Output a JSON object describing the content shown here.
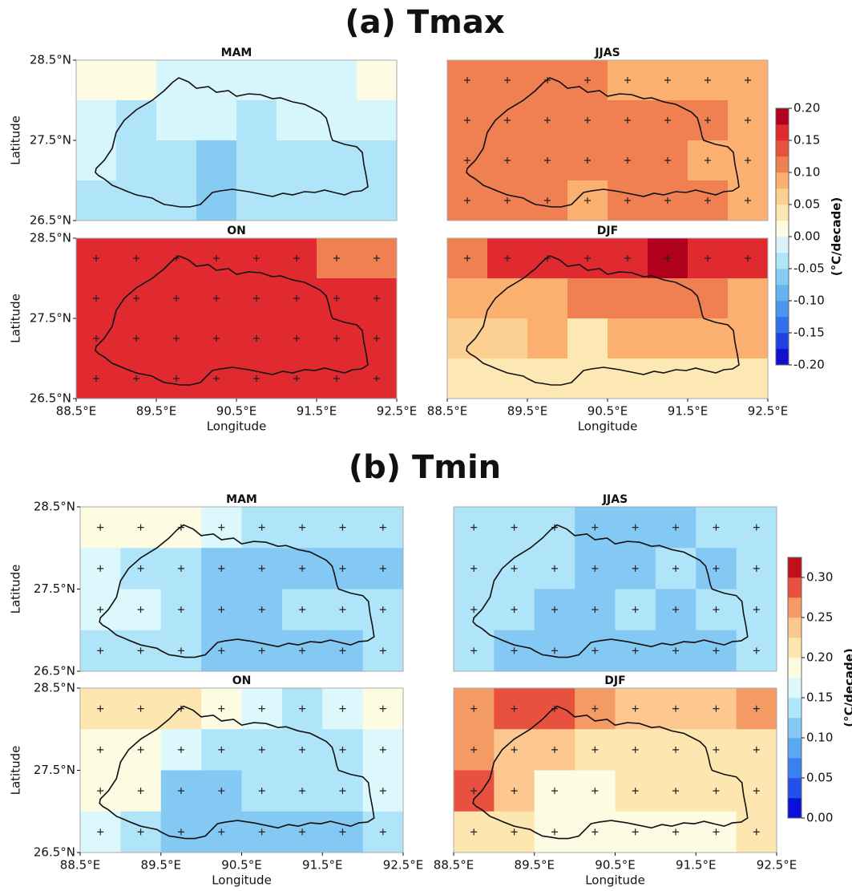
{
  "chart_data": [
    {
      "type": "heatmap",
      "title": "(a) Tmax",
      "xlabel": "Longitude",
      "ylabel": "Latitude",
      "xlim": [
        88.5,
        92.5
      ],
      "ylim": [
        26.5,
        28.5
      ],
      "xticks": [
        {
          "value": 88.5,
          "label": "88.5°E"
        },
        {
          "value": 89.5,
          "label": "89.5°E"
        },
        {
          "value": 90.5,
          "label": "90.5°E"
        },
        {
          "value": 91.5,
          "label": "91.5°E"
        },
        {
          "value": 92.5,
          "label": "92.5°E"
        }
      ],
      "yticks": [
        {
          "value": 28.5,
          "label": "28.5°N"
        },
        {
          "value": 27.5,
          "label": "27.5°N"
        },
        {
          "value": 26.5,
          "label": "26.5°N"
        }
      ],
      "colorbar": {
        "label": "(°C/decade)",
        "lim": [
          -0.2,
          0.2
        ],
        "ticks": [
          {
            "value": 0.2,
            "label": "0.20"
          },
          0.15,
          {
            "value": 0.1,
            "label": "0.10"
          },
          0.05,
          {
            "value": 0,
            "label": "0.00"
          },
          -0.05,
          {
            "value": -0.1,
            "label": "-0.10"
          },
          -0.15,
          {
            "value": -0.2,
            "label": "-0.20"
          }
        ],
        "colors": [
          "#1010d0",
          "#2040e0",
          "#3070f0",
          "#4a94f2",
          "#64b4f2",
          "#86ccf2",
          "#b0e4f8",
          "#d6f6fc",
          "#fdfbe2",
          "#fde8b4",
          "#fcd092",
          "#fbb070",
          "#f08052",
          "#ea5240",
          "#e02a30",
          "#b0001c"
        ]
      },
      "panels": [
        {
          "title": "MAM",
          "stipple_rows": [],
          "values": [
            [
              0.01,
              0.01,
              -0.01,
              -0.01,
              -0.01,
              -0.01,
              -0.01,
              0.01
            ],
            [
              -0.01,
              -0.035,
              -0.005,
              -0.005,
              -0.035,
              -0.005,
              -0.005,
              -0.01
            ],
            [
              -0.01,
              -0.035,
              -0.035,
              -0.06,
              -0.035,
              -0.035,
              -0.035,
              -0.035
            ],
            [
              -0.035,
              -0.035,
              -0.035,
              -0.06,
              -0.035,
              -0.035,
              -0.035,
              -0.035
            ]
          ]
        },
        {
          "title": "JJAS",
          "stipple_rows": [
            0,
            1,
            2,
            3
          ],
          "values": [
            [
              0.11,
              0.11,
              0.11,
              0.11,
              0.09,
              0.09,
              0.09,
              0.09
            ],
            [
              0.11,
              0.11,
              0.11,
              0.11,
              0.11,
              0.11,
              0.11,
              0.09
            ],
            [
              0.11,
              0.11,
              0.11,
              0.11,
              0.11,
              0.11,
              0.09,
              0.09
            ],
            [
              0.11,
              0.11,
              0.11,
              0.09,
              0.11,
              0.11,
              0.11,
              0.09
            ]
          ]
        },
        {
          "title": "ON",
          "stipple_rows": [
            0,
            1,
            2,
            3
          ],
          "values": [
            [
              0.16,
              0.16,
              0.16,
              0.16,
              0.16,
              0.16,
              0.12,
              0.12
            ],
            [
              0.16,
              0.16,
              0.16,
              0.16,
              0.16,
              0.16,
              0.16,
              0.16
            ],
            [
              0.16,
              0.16,
              0.16,
              0.16,
              0.17,
              0.16,
              0.17,
              0.16
            ],
            [
              0.16,
              0.16,
              0.16,
              0.16,
              0.16,
              0.16,
              0.16,
              0.16
            ]
          ]
        },
        {
          "title": "DJF",
          "stipple_rows": [
            0
          ],
          "values": [
            [
              0.12,
              0.16,
              0.16,
              0.16,
              0.16,
              0.18,
              0.16,
              0.16
            ],
            [
              0.09,
              0.09,
              0.09,
              0.12,
              0.12,
              0.12,
              0.12,
              0.09
            ],
            [
              0.06,
              0.06,
              0.09,
              0.04,
              0.09,
              0.09,
              0.09,
              0.09
            ],
            [
              0.04,
              0.04,
              0.04,
              0.04,
              0.04,
              0.04,
              0.04,
              0.04
            ]
          ]
        }
      ]
    },
    {
      "type": "heatmap",
      "title": "(b) Tmin",
      "xlabel": "Longitude",
      "ylabel": "Latitude",
      "xlim": [
        88.5,
        92.5
      ],
      "ylim": [
        26.5,
        28.5
      ],
      "xticks": [
        {
          "value": 88.5,
          "label": "88.5°E"
        },
        {
          "value": 89.5,
          "label": "89.5°E"
        },
        {
          "value": 90.5,
          "label": "90.5°E"
        },
        {
          "value": 91.5,
          "label": "91.5°E"
        },
        {
          "value": 92.5,
          "label": "92.5°E"
        }
      ],
      "yticks": [
        {
          "value": 28.5,
          "label": "28.5°N"
        },
        {
          "value": 27.5,
          "label": "27.5°N"
        },
        {
          "value": 26.5,
          "label": "26.5°N"
        }
      ],
      "colorbar": {
        "label": "(°C/decade)",
        "lim": [
          0,
          0.325
        ],
        "ticks": [
          {
            "value": 0.3,
            "label": "0.30"
          },
          0.25,
          {
            "value": 0.2,
            "label": "0.20"
          },
          0.15,
          {
            "value": 0.1,
            "label": "0.10"
          },
          0.05,
          {
            "value": 0,
            "label": "0.00"
          }
        ],
        "colors": [
          "#0a10d8",
          "#2250e8",
          "#3a80f0",
          "#58a8f2",
          "#84c8f4",
          "#b0e4f8",
          "#dcf8fc",
          "#fdfbe2",
          "#fde6b0",
          "#fcc890",
          "#f49a64",
          "#e85040",
          "#c0101c"
        ]
      },
      "panels": [
        {
          "title": "MAM",
          "stipple_rows": [
            0,
            1,
            2,
            3
          ],
          "values": [
            [
              0.18,
              0.18,
              0.18,
              0.16,
              0.14,
              0.14,
              0.14,
              0.14
            ],
            [
              0.16,
              0.14,
              0.14,
              0.12,
              0.12,
              0.12,
              0.12,
              0.12
            ],
            [
              0.16,
              0.16,
              0.14,
              0.12,
              0.12,
              0.14,
              0.14,
              0.14
            ],
            [
              0.14,
              0.14,
              0.14,
              0.12,
              0.12,
              0.12,
              0.12,
              0.14
            ]
          ]
        },
        {
          "title": "JJAS",
          "stipple_rows": [
            0,
            1,
            2,
            3
          ],
          "values": [
            [
              0.14,
              0.14,
              0.14,
              0.12,
              0.12,
              0.12,
              0.14,
              0.14
            ],
            [
              0.14,
              0.14,
              0.14,
              0.12,
              0.12,
              0.14,
              0.12,
              0.14
            ],
            [
              0.14,
              0.14,
              0.12,
              0.12,
              0.14,
              0.12,
              0.14,
              0.14
            ],
            [
              0.14,
              0.12,
              0.12,
              0.12,
              0.12,
              0.12,
              0.12,
              0.14
            ]
          ]
        },
        {
          "title": "ON",
          "stipple_rows": [
            0,
            1,
            2,
            3
          ],
          "values": [
            [
              0.205,
              0.205,
              0.205,
              0.18,
              0.16,
              0.14,
              0.16,
              0.18
            ],
            [
              0.18,
              0.18,
              0.16,
              0.14,
              0.14,
              0.14,
              0.14,
              0.16
            ],
            [
              0.18,
              0.18,
              0.12,
              0.11,
              0.14,
              0.14,
              0.14,
              0.16
            ],
            [
              0.16,
              0.14,
              0.11,
              0.12,
              0.12,
              0.12,
              0.12,
              0.14
            ]
          ]
        },
        {
          "title": "DJF",
          "stipple_rows": [
            0,
            1,
            2,
            3
          ],
          "values": [
            [
              0.26,
              0.29,
              0.29,
              0.26,
              0.24,
              0.24,
              0.24,
              0.26
            ],
            [
              0.26,
              0.24,
              0.24,
              0.21,
              0.21,
              0.21,
              0.21,
              0.21
            ],
            [
              0.28,
              0.24,
              0.19,
              0.18,
              0.22,
              0.21,
              0.22,
              0.21
            ],
            [
              0.21,
              0.21,
              0.19,
              0.19,
              0.19,
              0.19,
              0.19,
              0.21
            ]
          ]
        }
      ]
    }
  ]
}
